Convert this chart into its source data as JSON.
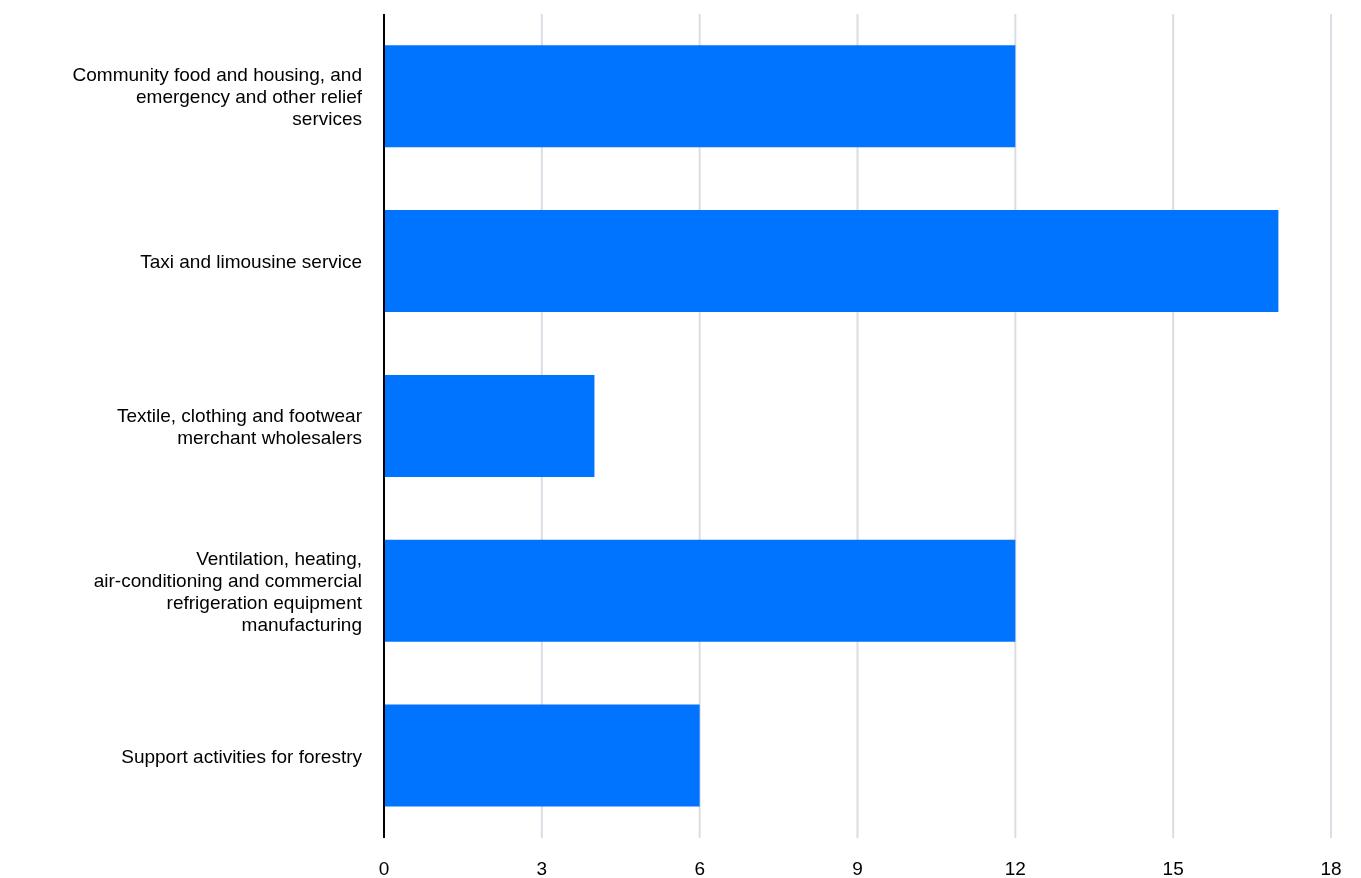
{
  "chart_data": {
    "type": "bar",
    "orientation": "horizontal",
    "categories": [
      "Community food and housing, and emergency and other relief services",
      "Taxi and limousine service",
      "Textile, clothing and footwear merchant wholesalers",
      "Ventilation, heating, air-conditioning and commercial refrigeration equipment manufacturing",
      "Support activities for forestry"
    ],
    "values": [
      12,
      17,
      4,
      12,
      6
    ],
    "color": "#0073ff",
    "xlim": [
      0,
      18
    ],
    "xticks": [
      0,
      3,
      6,
      9,
      12,
      15,
      18
    ],
    "grid": "x",
    "legend": false
  }
}
